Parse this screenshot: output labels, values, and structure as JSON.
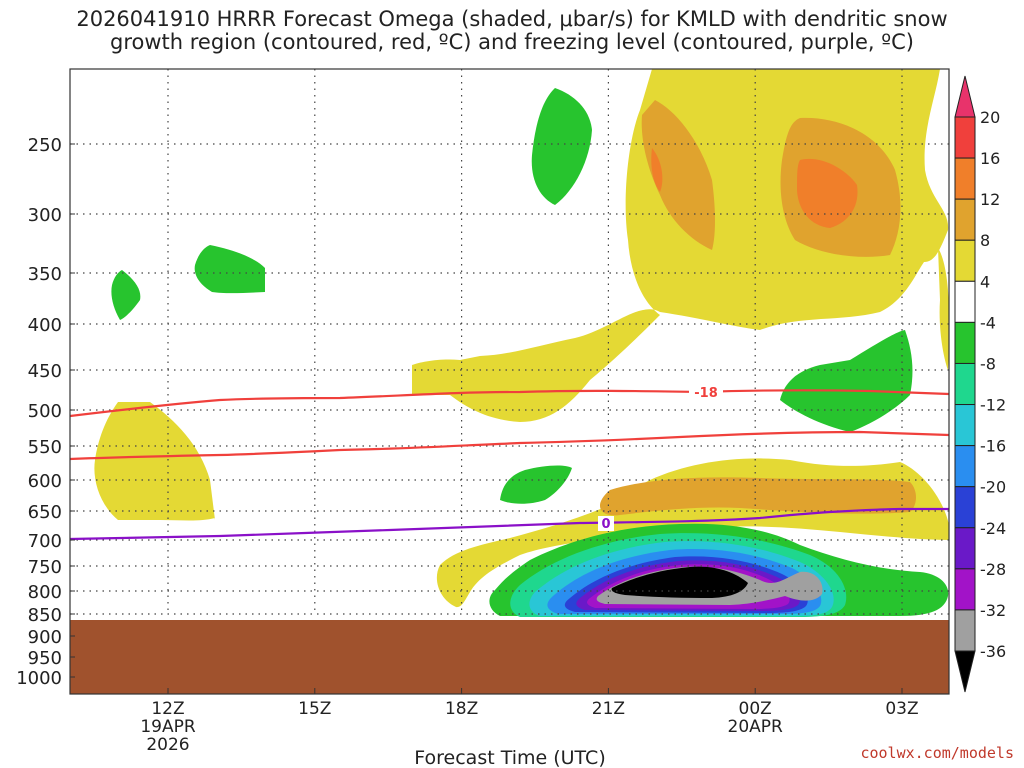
{
  "title_lines": [
    "2026041910 HRRR Forecast Omega (shaded, μbar/s) for KMLD with dendritic snow",
    "growth region (contoured, red, ºC) and freezing level (contoured, purple, ºC)"
  ],
  "chart_data": {
    "type": "time-height cross section",
    "xlabel": "Forecast Time (UTC)",
    "x_ticks": [
      {
        "hour": 12,
        "lines": [
          "12Z",
          "19APR",
          "2026"
        ]
      },
      {
        "hour": 15,
        "lines": [
          "15Z"
        ]
      },
      {
        "hour": 18,
        "lines": [
          "18Z"
        ]
      },
      {
        "hour": 21,
        "lines": [
          "21Z"
        ]
      },
      {
        "hour": 24,
        "lines": [
          "00Z",
          "20APR"
        ]
      },
      {
        "hour": 27,
        "lines": [
          "03Z"
        ]
      }
    ],
    "y_ticks": [
      250,
      300,
      350,
      400,
      450,
      500,
      550,
      600,
      650,
      700,
      750,
      800,
      850,
      900,
      950,
      1000
    ],
    "colorbar": {
      "labels": [
        20,
        16,
        12,
        8,
        4,
        -4,
        -8,
        -12,
        -16,
        -20,
        -24,
        -28,
        -32,
        -36
      ],
      "colors": [
        "#e8336b",
        "#f0403c",
        "#f07f2a",
        "#e0a32e",
        "#e4d934",
        "#ffffff",
        "#27c42e",
        "#1fd78e",
        "#29c6d6",
        "#2a8ef0",
        "#2a41d6",
        "#6a19c8",
        "#a213c8",
        "#a0a0a0",
        "#000000"
      ]
    },
    "contours": [
      {
        "name": "dendritic snow growth region",
        "color": "#f0403c",
        "labels": [
          "-18"
        ]
      },
      {
        "name": "freezing level",
        "color": "#8a10c8",
        "labels": [
          "0"
        ]
      }
    ],
    "terrain_color": "#a0522d"
  },
  "watermark": "coolwx.com/models"
}
